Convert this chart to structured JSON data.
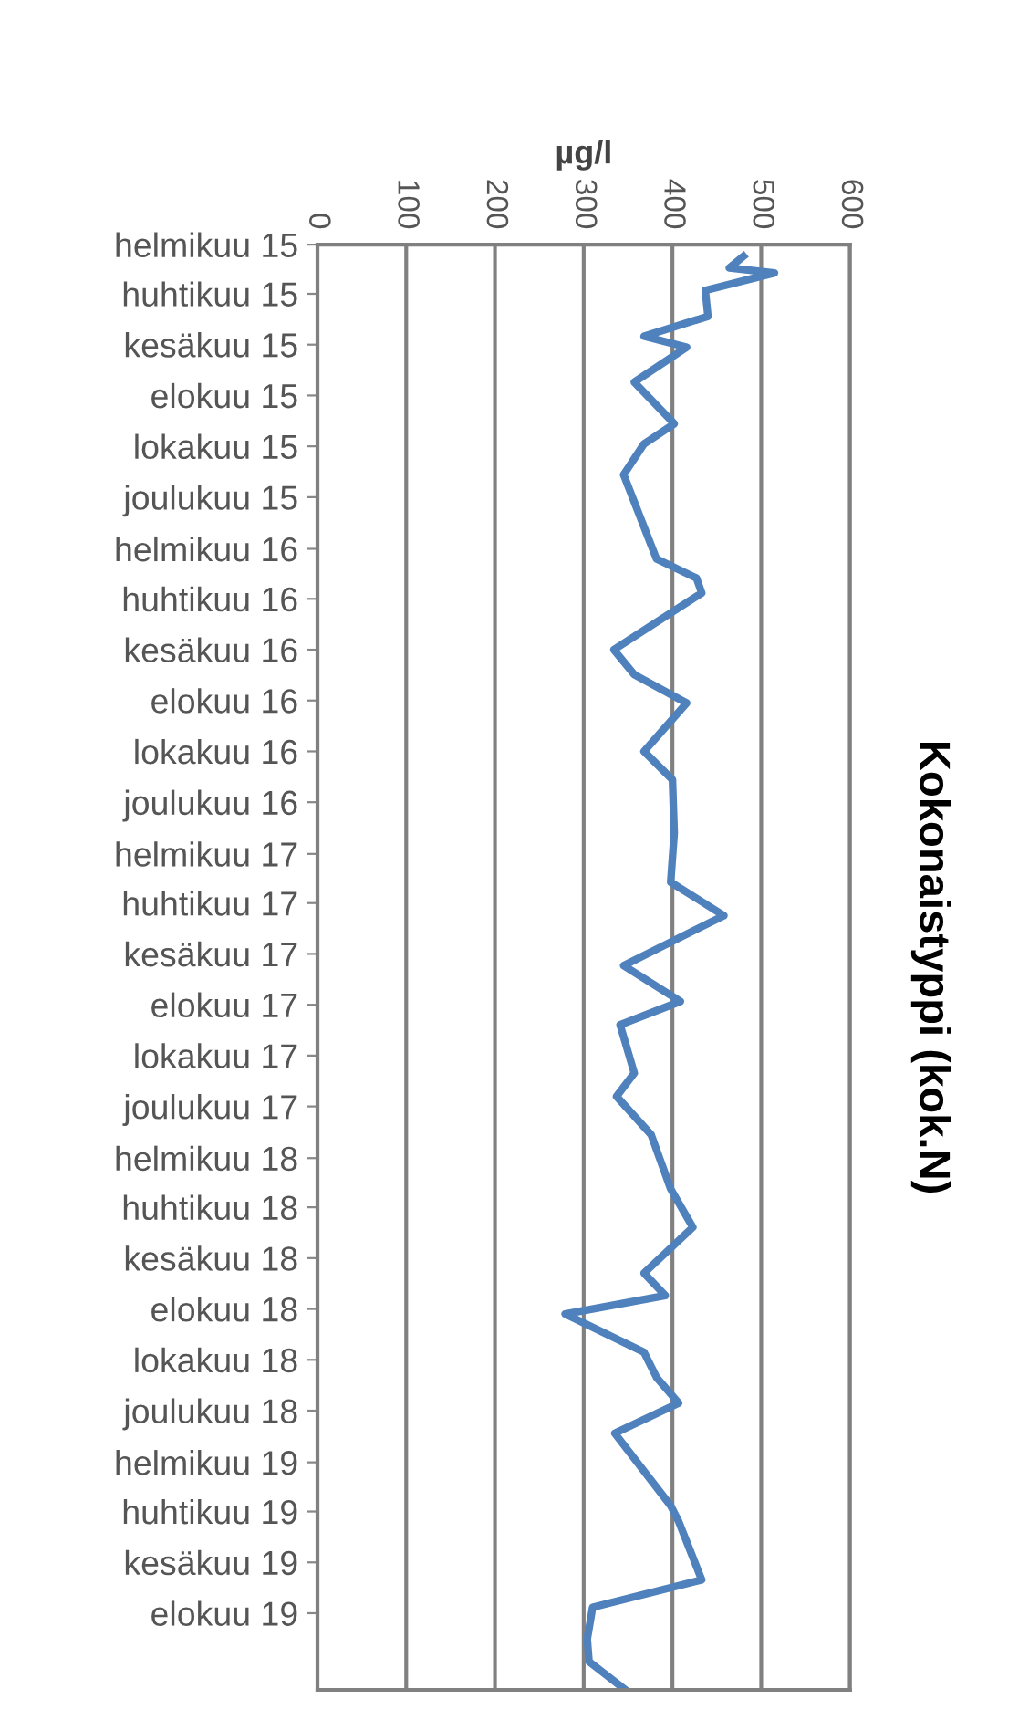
{
  "chart_data": {
    "type": "line",
    "orientation": "horizontal",
    "title": "Kokonaistyppi (kok.N)",
    "xlabel": "µg/l",
    "x": [
      "2015-02-15",
      "2015-03-01",
      "2015-03-07",
      "2015-03-28",
      "2015-04-28",
      "2015-05-22",
      "2015-06-04",
      "2015-07-16",
      "2015-09-04",
      "2015-09-28",
      "2015-11-04",
      "2016-02-13",
      "2016-03-07",
      "2016-03-25",
      "2016-06-01",
      "2016-07-01",
      "2016-08-04",
      "2016-10-01",
      "2016-11-04",
      "2017-01-07",
      "2017-03-07",
      "2017-04-16",
      "2017-06-15",
      "2017-07-28",
      "2017-08-25",
      "2017-10-22",
      "2017-11-19",
      "2018-01-04",
      "2018-03-10",
      "2018-04-25",
      "2018-06-19",
      "2018-07-16",
      "2018-08-07",
      "2018-09-22",
      "2018-10-22",
      "2018-11-22",
      "2018-12-28",
      "2019-03-25",
      "2019-04-13",
      "2019-06-22",
      "2019-07-25",
      "2019-09-01",
      "2019-09-28",
      "2019-11-01"
    ],
    "series": [
      {
        "color": "#4f81bd",
        "values": [
          480,
          464,
          515,
          437,
          440,
          368,
          416,
          357,
          402,
          368,
          345,
          382,
          427,
          433,
          334,
          357,
          416,
          368,
          400,
          402,
          398,
          458,
          345,
          409,
          341,
          357,
          337,
          376,
          398,
          423,
          368,
          392,
          279,
          368,
          382,
          407,
          335,
          398,
          407,
          433,
          310,
          304,
          306,
          347
        ]
      }
    ],
    "xlim": [
      0,
      600
    ],
    "xticks": [
      0,
      100,
      200,
      300,
      400,
      500,
      600
    ],
    "ylim": [
      "2019-11-01",
      "2015-02-01"
    ],
    "yticks": [
      {
        "value": "2015-02-01",
        "label": "helmikuu 15"
      },
      {
        "value": "2015-04-01",
        "label": "huhtikuu 15"
      },
      {
        "value": "2015-06-01",
        "label": "kesäkuu 15"
      },
      {
        "value": "2015-08-01",
        "label": "elokuu 15"
      },
      {
        "value": "2015-10-01",
        "label": "lokakuu 15"
      },
      {
        "value": "2015-12-01",
        "label": "joulukuu 15"
      },
      {
        "value": "2016-02-01",
        "label": "helmikuu 16"
      },
      {
        "value": "2016-04-01",
        "label": "huhtikuu 16"
      },
      {
        "value": "2016-06-01",
        "label": "kesäkuu 16"
      },
      {
        "value": "2016-08-01",
        "label": "elokuu 16"
      },
      {
        "value": "2016-10-01",
        "label": "lokakuu 16"
      },
      {
        "value": "2016-12-01",
        "label": "joulukuu 16"
      },
      {
        "value": "2017-02-01",
        "label": "helmikuu 17"
      },
      {
        "value": "2017-04-01",
        "label": "huhtikuu 17"
      },
      {
        "value": "2017-06-01",
        "label": "kesäkuu 17"
      },
      {
        "value": "2017-08-01",
        "label": "elokuu 17"
      },
      {
        "value": "2017-10-01",
        "label": "lokakuu 17"
      },
      {
        "value": "2017-12-01",
        "label": "joulukuu 17"
      },
      {
        "value": "2018-02-01",
        "label": "helmikuu 18"
      },
      {
        "value": "2018-04-01",
        "label": "huhtikuu 18"
      },
      {
        "value": "2018-06-01",
        "label": "kesäkuu 18"
      },
      {
        "value": "2018-08-01",
        "label": "elokuu 18"
      },
      {
        "value": "2018-10-01",
        "label": "lokakuu 18"
      },
      {
        "value": "2018-12-01",
        "label": "joulukuu 18"
      },
      {
        "value": "2019-02-01",
        "label": "helmikuu 19"
      },
      {
        "value": "2019-04-01",
        "label": "huhtikuu 19"
      },
      {
        "value": "2019-06-01",
        "label": "kesäkuu 19"
      },
      {
        "value": "2019-08-01",
        "label": "elokuu 19"
      }
    ],
    "grid": "x",
    "legend": false
  }
}
